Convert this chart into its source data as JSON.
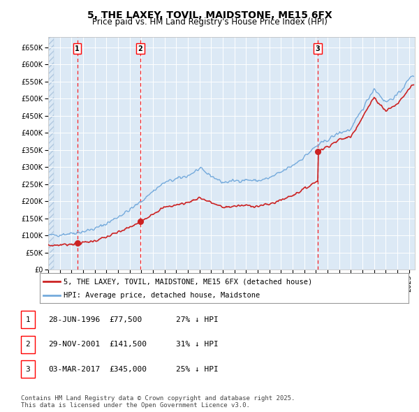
{
  "title": "5, THE LAXEY, TOVIL, MAIDSTONE, ME15 6FX",
  "subtitle": "Price paid vs. HM Land Registry's House Price Index (HPI)",
  "ylim": [
    0,
    680000
  ],
  "yticks": [
    0,
    50000,
    100000,
    150000,
    200000,
    250000,
    300000,
    350000,
    400000,
    450000,
    500000,
    550000,
    600000,
    650000
  ],
  "xlim_start": 1994.0,
  "xlim_end": 2025.5,
  "bg_color": "#dce9f5",
  "grid_color": "#ffffff",
  "sale_dates": [
    1996.49,
    2001.91,
    2017.17
  ],
  "sale_prices": [
    77500,
    141500,
    345000
  ],
  "sale_labels": [
    "1",
    "2",
    "3"
  ],
  "hpi_line_color": "#74aadc",
  "price_line_color": "#cc2222",
  "hpi_key_years": [
    1994,
    1995,
    1996,
    1997,
    1998,
    1999,
    2000,
    2001,
    2002,
    2003,
    2004,
    2005,
    2006,
    2007,
    2008,
    2009,
    2010,
    2011,
    2012,
    2013,
    2014,
    2015,
    2016,
    2017,
    2018,
    2019,
    2020,
    2021,
    2022,
    2023,
    2024,
    2025.3
  ],
  "hpi_key_prices": [
    100000,
    103000,
    107000,
    112000,
    120000,
    135000,
    155000,
    175000,
    200000,
    230000,
    255000,
    265000,
    275000,
    295000,
    275000,
    255000,
    260000,
    263000,
    260000,
    268000,
    285000,
    305000,
    330000,
    360000,
    380000,
    400000,
    410000,
    470000,
    530000,
    490000,
    510000,
    570000
  ],
  "legend_entries": [
    "5, THE LAXEY, TOVIL, MAIDSTONE, ME15 6FX (detached house)",
    "HPI: Average price, detached house, Maidstone"
  ],
  "table_rows": [
    [
      "1",
      "28-JUN-1996",
      "£77,500",
      "27% ↓ HPI"
    ],
    [
      "2",
      "29-NOV-2001",
      "£141,500",
      "31% ↓ HPI"
    ],
    [
      "3",
      "03-MAR-2017",
      "£345,000",
      "25% ↓ HPI"
    ]
  ],
  "footnote": "Contains HM Land Registry data © Crown copyright and database right 2025.\nThis data is licensed under the Open Government Licence v3.0.",
  "title_fontsize": 10,
  "subtitle_fontsize": 8.5,
  "tick_fontsize": 7,
  "legend_fontsize": 7.5,
  "table_fontsize": 8,
  "footnote_fontsize": 6.5
}
